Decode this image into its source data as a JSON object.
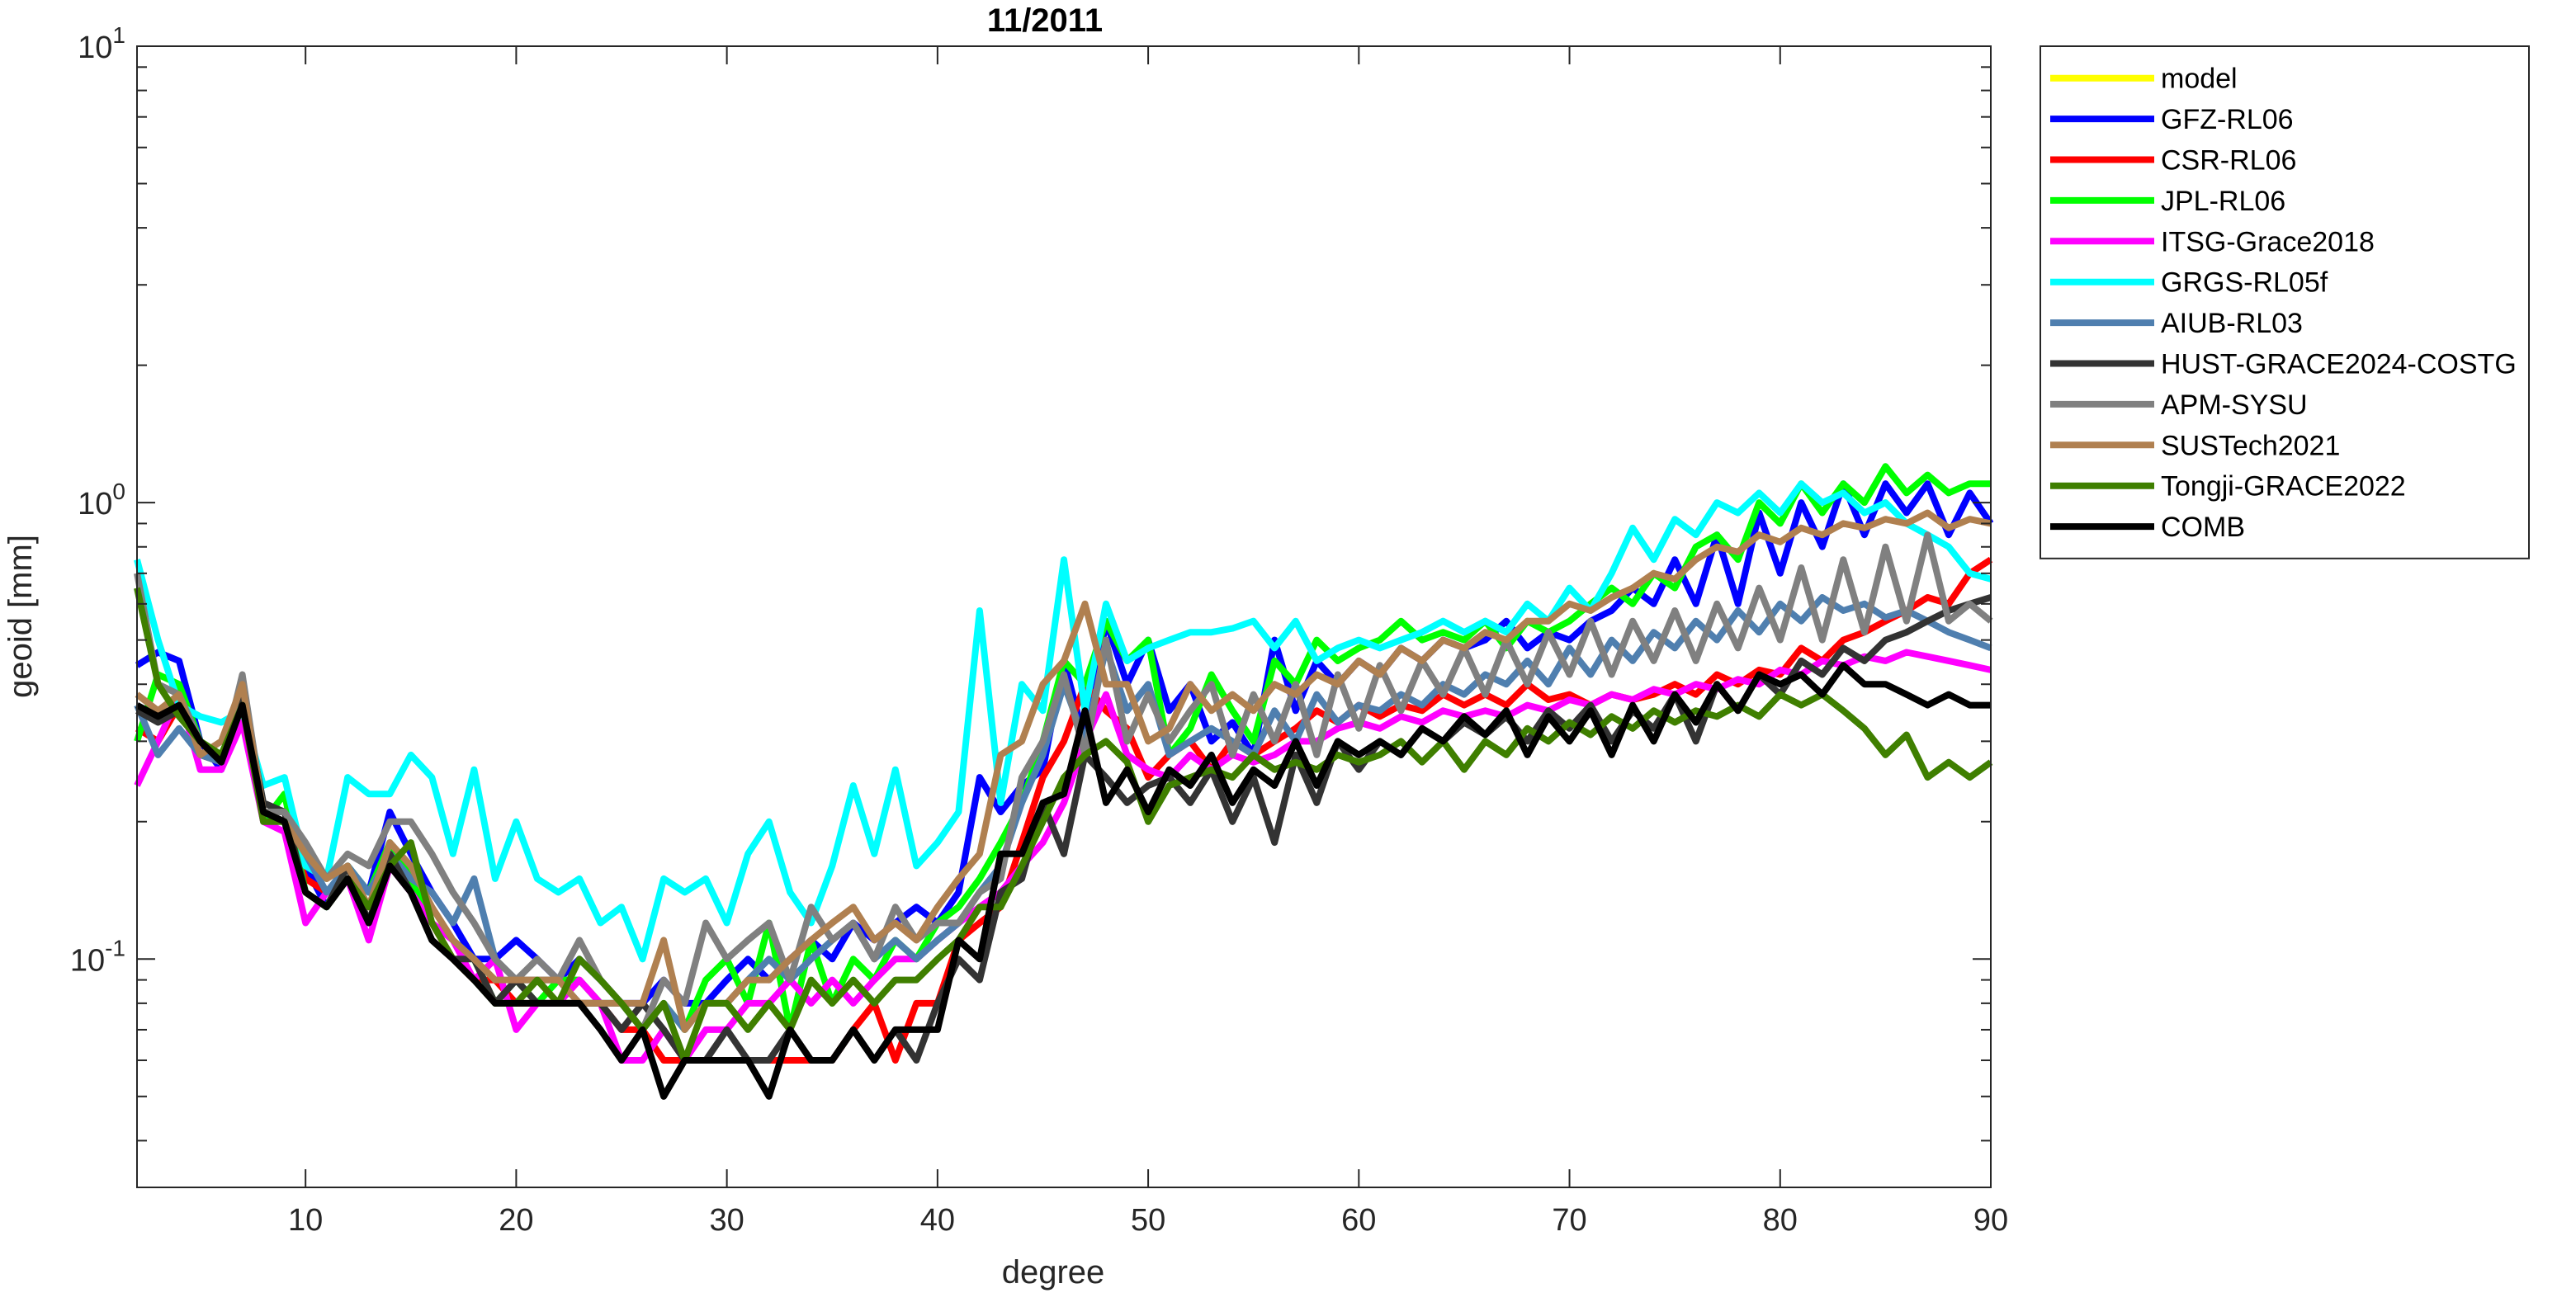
{
  "chart_data": {
    "type": "line",
    "title": "11/2011",
    "xlabel": "degree",
    "ylabel": "geoid [mm]",
    "xlim": [
      2,
      90
    ],
    "ylim": [
      0.0316,
      10
    ],
    "yscale": "log",
    "x_ticks": [
      10,
      20,
      30,
      40,
      50,
      60,
      70,
      80,
      90
    ],
    "x_tick_labels": [
      "10",
      "20",
      "30",
      "40",
      "50",
      "60",
      "70",
      "80",
      "90"
    ],
    "y_ticks": [
      {
        "value": 10,
        "base": "10",
        "exp": "1"
      },
      {
        "value": 1,
        "base": "10",
        "exp": "0"
      },
      {
        "value": 0.1,
        "base": "10",
        "exp": "-1"
      }
    ],
    "legend_position": "outside-right-top",
    "x_start": 2,
    "series": [
      {
        "name": "model",
        "color": "#ffff00",
        "values": []
      },
      {
        "name": "GFZ-RL06",
        "color": "#0000ff",
        "values": [
          0.44,
          0.47,
          0.45,
          0.3,
          0.26,
          0.4,
          0.21,
          0.2,
          0.16,
          0.13,
          0.16,
          0.14,
          0.21,
          0.17,
          0.14,
          0.12,
          0.1,
          0.1,
          0.11,
          0.1,
          0.09,
          0.1,
          0.09,
          0.08,
          0.08,
          0.09,
          0.08,
          0.08,
          0.09,
          0.1,
          0.09,
          0.1,
          0.11,
          0.1,
          0.12,
          0.11,
          0.12,
          0.13,
          0.12,
          0.14,
          0.25,
          0.21,
          0.24,
          0.26,
          0.45,
          0.3,
          0.55,
          0.4,
          0.5,
          0.35,
          0.4,
          0.3,
          0.33,
          0.28,
          0.5,
          0.35,
          0.45,
          0.4,
          0.45,
          0.42,
          0.48,
          0.45,
          0.5,
          0.48,
          0.5,
          0.55,
          0.48,
          0.52,
          0.5,
          0.55,
          0.58,
          0.65,
          0.6,
          0.75,
          0.6,
          0.85,
          0.6,
          0.95,
          0.7,
          1.0,
          0.8,
          1.1,
          0.85,
          1.1,
          0.95,
          1.1,
          0.85,
          1.05,
          0.9
        ]
      },
      {
        "name": "CSR-RL06",
        "color": "#ff0000",
        "values": [
          0.32,
          0.3,
          0.36,
          0.28,
          0.27,
          0.38,
          0.21,
          0.2,
          0.15,
          0.14,
          0.15,
          0.13,
          0.17,
          0.14,
          0.12,
          0.1,
          0.09,
          0.09,
          0.08,
          0.08,
          0.08,
          0.08,
          0.08,
          0.07,
          0.07,
          0.06,
          0.06,
          0.06,
          0.06,
          0.06,
          0.06,
          0.06,
          0.06,
          0.06,
          0.07,
          0.08,
          0.06,
          0.08,
          0.08,
          0.11,
          0.12,
          0.13,
          0.18,
          0.25,
          0.3,
          0.4,
          0.35,
          0.32,
          0.25,
          0.28,
          0.3,
          0.26,
          0.3,
          0.28,
          0.3,
          0.32,
          0.35,
          0.33,
          0.36,
          0.34,
          0.36,
          0.35,
          0.38,
          0.36,
          0.38,
          0.36,
          0.4,
          0.37,
          0.38,
          0.36,
          0.38,
          0.37,
          0.38,
          0.4,
          0.38,
          0.42,
          0.4,
          0.43,
          0.42,
          0.48,
          0.45,
          0.5,
          0.52,
          0.55,
          0.58,
          0.62,
          0.6,
          0.7,
          0.75
        ]
      },
      {
        "name": "JPL-RL06",
        "color": "#00ff00",
        "values": [
          0.3,
          0.42,
          0.4,
          0.3,
          0.28,
          0.36,
          0.2,
          0.23,
          0.14,
          0.13,
          0.16,
          0.14,
          0.18,
          0.15,
          0.12,
          0.11,
          0.1,
          0.08,
          0.09,
          0.08,
          0.09,
          0.09,
          0.08,
          0.08,
          0.07,
          0.08,
          0.07,
          0.09,
          0.1,
          0.08,
          0.12,
          0.07,
          0.11,
          0.08,
          0.1,
          0.09,
          0.11,
          0.1,
          0.12,
          0.13,
          0.15,
          0.18,
          0.22,
          0.3,
          0.45,
          0.4,
          0.55,
          0.45,
          0.5,
          0.28,
          0.32,
          0.42,
          0.35,
          0.3,
          0.45,
          0.4,
          0.5,
          0.45,
          0.48,
          0.5,
          0.55,
          0.5,
          0.52,
          0.5,
          0.55,
          0.48,
          0.55,
          0.52,
          0.55,
          0.6,
          0.65,
          0.6,
          0.7,
          0.65,
          0.8,
          0.85,
          0.75,
          1.0,
          0.9,
          1.1,
          0.95,
          1.1,
          1.0,
          1.2,
          1.05,
          1.15,
          1.05,
          1.1,
          1.1
        ]
      },
      {
        "name": "ITSG-Grace2018",
        "color": "#ff00ff",
        "values": [
          0.24,
          0.3,
          0.38,
          0.26,
          0.26,
          0.33,
          0.2,
          0.19,
          0.12,
          0.14,
          0.15,
          0.11,
          0.16,
          0.14,
          0.12,
          0.11,
          0.09,
          0.1,
          0.07,
          0.08,
          0.08,
          0.09,
          0.08,
          0.06,
          0.06,
          0.07,
          0.06,
          0.07,
          0.07,
          0.08,
          0.08,
          0.09,
          0.08,
          0.09,
          0.08,
          0.09,
          0.1,
          0.1,
          0.11,
          0.12,
          0.13,
          0.14,
          0.16,
          0.18,
          0.22,
          0.3,
          0.38,
          0.28,
          0.26,
          0.25,
          0.28,
          0.26,
          0.28,
          0.27,
          0.28,
          0.3,
          0.3,
          0.32,
          0.33,
          0.32,
          0.34,
          0.33,
          0.35,
          0.34,
          0.35,
          0.34,
          0.36,
          0.35,
          0.37,
          0.36,
          0.38,
          0.37,
          0.39,
          0.38,
          0.4,
          0.39,
          0.41,
          0.4,
          0.43,
          0.42,
          0.45,
          0.44,
          0.46,
          0.45,
          0.47,
          0.46,
          0.45,
          0.44,
          0.43
        ]
      },
      {
        "name": "GRGS-RL05f",
        "color": "#00ffff",
        "values": [
          0.75,
          0.5,
          0.36,
          0.34,
          0.33,
          0.35,
          0.24,
          0.25,
          0.16,
          0.15,
          0.25,
          0.23,
          0.23,
          0.28,
          0.25,
          0.17,
          0.26,
          0.15,
          0.2,
          0.15,
          0.14,
          0.15,
          0.12,
          0.13,
          0.1,
          0.15,
          0.14,
          0.15,
          0.12,
          0.17,
          0.2,
          0.14,
          0.12,
          0.16,
          0.24,
          0.17,
          0.26,
          0.16,
          0.18,
          0.21,
          0.58,
          0.22,
          0.4,
          0.35,
          0.75,
          0.35,
          0.6,
          0.45,
          0.48,
          0.5,
          0.52,
          0.52,
          0.53,
          0.55,
          0.48,
          0.55,
          0.45,
          0.48,
          0.5,
          0.48,
          0.5,
          0.52,
          0.55,
          0.52,
          0.55,
          0.52,
          0.6,
          0.55,
          0.65,
          0.58,
          0.7,
          0.88,
          0.75,
          0.92,
          0.85,
          1.0,
          0.95,
          1.05,
          0.95,
          1.1,
          1.0,
          1.05,
          0.95,
          1.0,
          0.9,
          0.85,
          0.8,
          0.7,
          0.68
        ]
      },
      {
        "name": "AIUB-RL03",
        "color": "#4f7faf",
        "values": [
          0.36,
          0.28,
          0.32,
          0.28,
          0.27,
          0.4,
          0.21,
          0.2,
          0.17,
          0.14,
          0.16,
          0.14,
          0.17,
          0.15,
          0.14,
          0.12,
          0.15,
          0.1,
          0.09,
          0.09,
          0.09,
          0.08,
          0.08,
          0.08,
          0.07,
          0.08,
          0.07,
          0.08,
          0.08,
          0.09,
          0.1,
          0.09,
          0.1,
          0.11,
          0.12,
          0.1,
          0.11,
          0.1,
          0.11,
          0.12,
          0.14,
          0.16,
          0.22,
          0.28,
          0.4,
          0.3,
          0.48,
          0.35,
          0.4,
          0.28,
          0.3,
          0.32,
          0.3,
          0.28,
          0.35,
          0.3,
          0.38,
          0.33,
          0.36,
          0.35,
          0.38,
          0.36,
          0.4,
          0.38,
          0.42,
          0.4,
          0.45,
          0.4,
          0.48,
          0.42,
          0.5,
          0.45,
          0.52,
          0.48,
          0.55,
          0.5,
          0.58,
          0.52,
          0.6,
          0.55,
          0.62,
          0.58,
          0.6,
          0.56,
          0.58,
          0.55,
          0.52,
          0.5,
          0.48
        ]
      },
      {
        "name": "HUST-GRACE2024-COSTG",
        "color": "#333333",
        "values": [
          0.35,
          0.33,
          0.35,
          0.3,
          0.27,
          0.38,
          0.22,
          0.21,
          0.14,
          0.13,
          0.16,
          0.12,
          0.17,
          0.14,
          0.11,
          0.1,
          0.1,
          0.08,
          0.09,
          0.08,
          0.08,
          0.08,
          0.08,
          0.07,
          0.08,
          0.07,
          0.06,
          0.06,
          0.07,
          0.06,
          0.06,
          0.07,
          0.06,
          0.06,
          0.07,
          0.06,
          0.07,
          0.06,
          0.08,
          0.1,
          0.09,
          0.14,
          0.15,
          0.22,
          0.17,
          0.28,
          0.25,
          0.22,
          0.24,
          0.25,
          0.22,
          0.26,
          0.2,
          0.25,
          0.18,
          0.28,
          0.22,
          0.3,
          0.26,
          0.3,
          0.28,
          0.32,
          0.3,
          0.33,
          0.31,
          0.34,
          0.3,
          0.35,
          0.32,
          0.36,
          0.3,
          0.35,
          0.32,
          0.38,
          0.3,
          0.4,
          0.35,
          0.42,
          0.38,
          0.45,
          0.42,
          0.48,
          0.45,
          0.5,
          0.52,
          0.55,
          0.58,
          0.6,
          0.62
        ]
      },
      {
        "name": "APM-SYSU",
        "color": "#808080",
        "values": [
          0.7,
          0.4,
          0.38,
          0.3,
          0.27,
          0.42,
          0.21,
          0.21,
          0.18,
          0.15,
          0.17,
          0.16,
          0.2,
          0.2,
          0.17,
          0.14,
          0.12,
          0.1,
          0.09,
          0.1,
          0.09,
          0.11,
          0.09,
          0.08,
          0.07,
          0.09,
          0.08,
          0.12,
          0.1,
          0.11,
          0.12,
          0.09,
          0.13,
          0.11,
          0.12,
          0.1,
          0.13,
          0.11,
          0.12,
          0.12,
          0.14,
          0.15,
          0.25,
          0.3,
          0.42,
          0.28,
          0.5,
          0.3,
          0.38,
          0.3,
          0.35,
          0.4,
          0.28,
          0.38,
          0.3,
          0.4,
          0.28,
          0.42,
          0.32,
          0.44,
          0.35,
          0.45,
          0.38,
          0.48,
          0.38,
          0.5,
          0.4,
          0.52,
          0.42,
          0.55,
          0.42,
          0.55,
          0.45,
          0.58,
          0.45,
          0.6,
          0.48,
          0.65,
          0.5,
          0.72,
          0.5,
          0.75,
          0.52,
          0.8,
          0.55,
          0.85,
          0.55,
          0.6,
          0.55
        ]
      },
      {
        "name": "SUSTech2021",
        "color": "#b08050",
        "values": [
          0.38,
          0.35,
          0.38,
          0.28,
          0.3,
          0.4,
          0.21,
          0.2,
          0.17,
          0.15,
          0.16,
          0.13,
          0.18,
          0.16,
          0.13,
          0.11,
          0.1,
          0.09,
          0.09,
          0.09,
          0.09,
          0.08,
          0.08,
          0.08,
          0.08,
          0.11,
          0.07,
          0.08,
          0.08,
          0.09,
          0.09,
          0.1,
          0.11,
          0.12,
          0.13,
          0.11,
          0.12,
          0.11,
          0.13,
          0.15,
          0.17,
          0.28,
          0.3,
          0.4,
          0.45,
          0.6,
          0.4,
          0.4,
          0.3,
          0.32,
          0.4,
          0.35,
          0.38,
          0.35,
          0.4,
          0.38,
          0.42,
          0.4,
          0.45,
          0.42,
          0.48,
          0.45,
          0.5,
          0.48,
          0.52,
          0.5,
          0.55,
          0.55,
          0.6,
          0.58,
          0.62,
          0.65,
          0.7,
          0.68,
          0.75,
          0.8,
          0.78,
          0.85,
          0.82,
          0.88,
          0.85,
          0.9,
          0.88,
          0.92,
          0.9,
          0.95,
          0.88,
          0.92,
          0.9
        ]
      },
      {
        "name": "Tongji-GRACE2022",
        "color": "#3f7f00",
        "values": [
          0.65,
          0.4,
          0.34,
          0.3,
          0.28,
          0.36,
          0.2,
          0.2,
          0.14,
          0.13,
          0.15,
          0.13,
          0.16,
          0.18,
          0.12,
          0.1,
          0.09,
          0.08,
          0.08,
          0.09,
          0.08,
          0.1,
          0.09,
          0.08,
          0.07,
          0.08,
          0.06,
          0.08,
          0.08,
          0.07,
          0.08,
          0.07,
          0.09,
          0.08,
          0.09,
          0.08,
          0.09,
          0.09,
          0.1,
          0.11,
          0.13,
          0.13,
          0.16,
          0.2,
          0.25,
          0.28,
          0.3,
          0.27,
          0.2,
          0.24,
          0.25,
          0.26,
          0.25,
          0.28,
          0.26,
          0.27,
          0.26,
          0.28,
          0.27,
          0.28,
          0.3,
          0.27,
          0.3,
          0.26,
          0.3,
          0.28,
          0.32,
          0.3,
          0.33,
          0.31,
          0.34,
          0.32,
          0.35,
          0.33,
          0.35,
          0.34,
          0.36,
          0.34,
          0.38,
          0.36,
          0.38,
          0.35,
          0.32,
          0.28,
          0.31,
          0.25,
          0.27,
          0.25,
          0.27
        ]
      },
      {
        "name": "COMB",
        "color": "#000000",
        "values": [
          0.36,
          0.34,
          0.36,
          0.3,
          0.27,
          0.36,
          0.21,
          0.2,
          0.14,
          0.13,
          0.15,
          0.12,
          0.16,
          0.14,
          0.11,
          0.1,
          0.09,
          0.08,
          0.08,
          0.08,
          0.08,
          0.08,
          0.07,
          0.06,
          0.07,
          0.05,
          0.06,
          0.06,
          0.06,
          0.06,
          0.05,
          0.07,
          0.06,
          0.06,
          0.07,
          0.06,
          0.07,
          0.07,
          0.07,
          0.11,
          0.1,
          0.17,
          0.17,
          0.22,
          0.23,
          0.35,
          0.22,
          0.26,
          0.21,
          0.26,
          0.24,
          0.28,
          0.22,
          0.26,
          0.24,
          0.3,
          0.24,
          0.3,
          0.28,
          0.3,
          0.28,
          0.32,
          0.3,
          0.34,
          0.31,
          0.35,
          0.28,
          0.34,
          0.3,
          0.35,
          0.28,
          0.36,
          0.3,
          0.38,
          0.33,
          0.4,
          0.35,
          0.42,
          0.4,
          0.42,
          0.38,
          0.44,
          0.4,
          0.4,
          0.38,
          0.36,
          0.38,
          0.36,
          0.36
        ]
      }
    ]
  }
}
